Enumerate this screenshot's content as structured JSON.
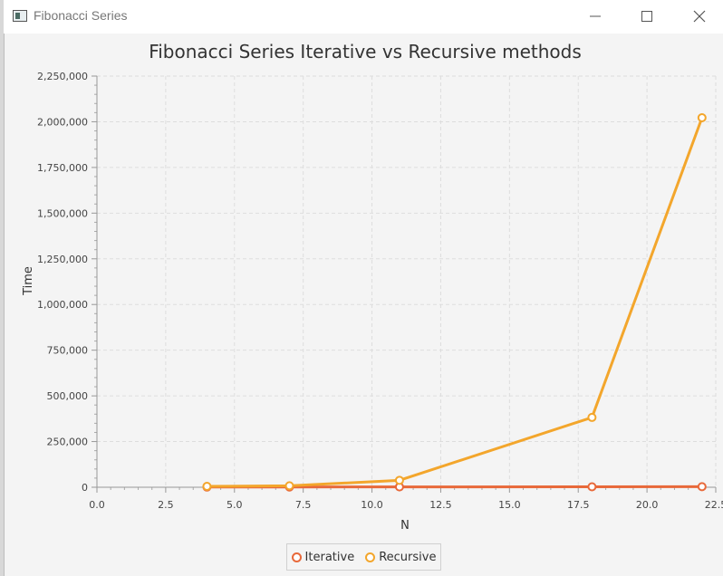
{
  "window": {
    "title": "Fibonacci Series",
    "icon": "app-window-icon",
    "controls": [
      "minimize-icon",
      "maximize-icon",
      "close-icon"
    ]
  },
  "colors": {
    "background": "#f4f4f4",
    "iterative": "#e8693a",
    "recursive": "#f3a62c",
    "grid": "#dddddd"
  },
  "chart_data": {
    "type": "line",
    "title": "Fibonacci Series Iterative vs Recursive methods",
    "xlabel": "N",
    "ylabel": "Time",
    "xlim": [
      0,
      22.5
    ],
    "ylim": [
      0,
      2250000
    ],
    "x_ticks": [
      "0.0",
      "2.5",
      "5.0",
      "7.5",
      "10.0",
      "12.5",
      "15.0",
      "17.5",
      "20.0",
      "22.5"
    ],
    "y_ticks": [
      "0",
      "250,000",
      "500,000",
      "750,000",
      "1,000,000",
      "1,250,000",
      "1,500,000",
      "1,750,000",
      "2,000,000",
      "2,250,000"
    ],
    "grid": true,
    "legend_position": "bottom",
    "series": [
      {
        "name": "Iterative",
        "x": [
          4,
          7,
          11,
          18,
          22
        ],
        "y": [
          1000,
          1500,
          2000,
          2500,
          3000
        ]
      },
      {
        "name": "Recursive",
        "x": [
          4,
          7,
          11,
          18,
          22
        ],
        "y": [
          5000,
          8000,
          38000,
          382000,
          2022000
        ]
      }
    ]
  }
}
